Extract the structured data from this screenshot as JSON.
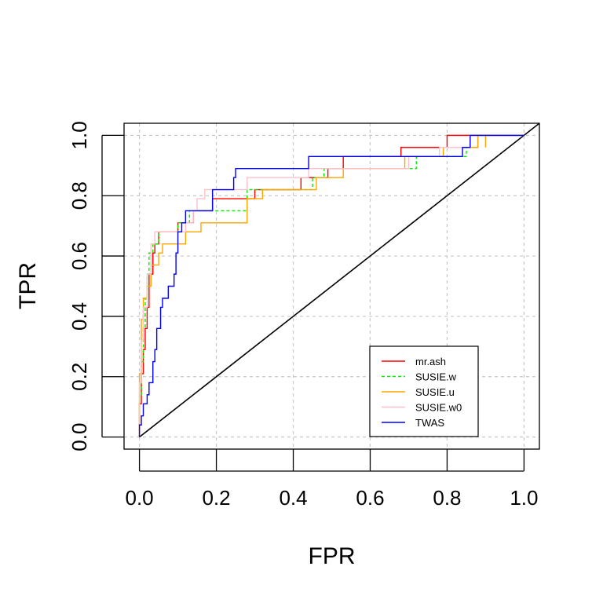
{
  "chart_data": {
    "type": "line",
    "title": "",
    "xlabel": "FPR",
    "ylabel": "TPR",
    "xlim": [
      -0.04,
      1.04
    ],
    "ylim": [
      -0.04,
      1.04
    ],
    "x_ticks": [
      0.0,
      0.2,
      0.4,
      0.6,
      0.8,
      1.0
    ],
    "y_ticks": [
      0.0,
      0.2,
      0.4,
      0.6,
      0.8,
      1.0
    ],
    "x_tick_labels": [
      "0.0",
      "0.2",
      "0.4",
      "0.6",
      "0.8",
      "1.0"
    ],
    "y_tick_labels": [
      "0.0",
      "0.2",
      "0.4",
      "0.6",
      "0.8",
      "1.0"
    ],
    "grid": true,
    "legend_position": "bottom-right",
    "reference_line": {
      "x": [
        0,
        1.04
      ],
      "y": [
        0,
        1.04
      ],
      "color": "#000000"
    },
    "series": [
      {
        "name": "mr.ash",
        "color": "#ff0000",
        "dash": "",
        "points": [
          [
            0,
            0
          ],
          [
            0,
            0.11
          ],
          [
            0.005,
            0.11
          ],
          [
            0.005,
            0.21
          ],
          [
            0.01,
            0.21
          ],
          [
            0.01,
            0.29
          ],
          [
            0.015,
            0.29
          ],
          [
            0.015,
            0.36
          ],
          [
            0.02,
            0.36
          ],
          [
            0.02,
            0.43
          ],
          [
            0.025,
            0.43
          ],
          [
            0.025,
            0.54
          ],
          [
            0.035,
            0.54
          ],
          [
            0.035,
            0.61
          ],
          [
            0.04,
            0.61
          ],
          [
            0.04,
            0.64
          ],
          [
            0.05,
            0.64
          ],
          [
            0.05,
            0.68
          ],
          [
            0.1,
            0.68
          ],
          [
            0.1,
            0.71
          ],
          [
            0.14,
            0.71
          ],
          [
            0.14,
            0.75
          ],
          [
            0.19,
            0.75
          ],
          [
            0.19,
            0.79
          ],
          [
            0.3,
            0.79
          ],
          [
            0.3,
            0.82
          ],
          [
            0.42,
            0.82
          ],
          [
            0.42,
            0.86
          ],
          [
            0.49,
            0.86
          ],
          [
            0.49,
            0.89
          ],
          [
            0.53,
            0.89
          ],
          [
            0.53,
            0.93
          ],
          [
            0.68,
            0.93
          ],
          [
            0.68,
            0.96
          ],
          [
            0.8,
            0.96
          ],
          [
            0.8,
            1.0
          ],
          [
            1.0,
            1.0
          ]
        ]
      },
      {
        "name": "SUSIE.w",
        "color": "#00ee00",
        "dash": "4,3",
        "points": [
          [
            0,
            0
          ],
          [
            0,
            0.14
          ],
          [
            0.005,
            0.14
          ],
          [
            0.005,
            0.25
          ],
          [
            0.01,
            0.25
          ],
          [
            0.01,
            0.36
          ],
          [
            0.015,
            0.36
          ],
          [
            0.015,
            0.46
          ],
          [
            0.02,
            0.46
          ],
          [
            0.02,
            0.54
          ],
          [
            0.025,
            0.54
          ],
          [
            0.025,
            0.61
          ],
          [
            0.035,
            0.61
          ],
          [
            0.035,
            0.64
          ],
          [
            0.05,
            0.64
          ],
          [
            0.05,
            0.68
          ],
          [
            0.1,
            0.68
          ],
          [
            0.1,
            0.71
          ],
          [
            0.13,
            0.71
          ],
          [
            0.13,
            0.75
          ],
          [
            0.28,
            0.75
          ],
          [
            0.28,
            0.82
          ],
          [
            0.45,
            0.82
          ],
          [
            0.45,
            0.86
          ],
          [
            0.48,
            0.86
          ],
          [
            0.48,
            0.89
          ],
          [
            0.72,
            0.89
          ],
          [
            0.72,
            0.93
          ],
          [
            0.85,
            0.93
          ],
          [
            0.85,
            0.96
          ],
          [
            0.88,
            0.96
          ],
          [
            0.88,
            1.0
          ],
          [
            1.0,
            1.0
          ]
        ]
      },
      {
        "name": "SUSIE.u",
        "color": "#ffa500",
        "dash": "",
        "points": [
          [
            0,
            0
          ],
          [
            0,
            0.21
          ],
          [
            0.005,
            0.21
          ],
          [
            0.005,
            0.39
          ],
          [
            0.01,
            0.39
          ],
          [
            0.01,
            0.46
          ],
          [
            0.02,
            0.46
          ],
          [
            0.02,
            0.5
          ],
          [
            0.03,
            0.5
          ],
          [
            0.03,
            0.57
          ],
          [
            0.05,
            0.57
          ],
          [
            0.05,
            0.61
          ],
          [
            0.06,
            0.61
          ],
          [
            0.06,
            0.64
          ],
          [
            0.12,
            0.64
          ],
          [
            0.12,
            0.68
          ],
          [
            0.16,
            0.68
          ],
          [
            0.16,
            0.71
          ],
          [
            0.28,
            0.71
          ],
          [
            0.28,
            0.79
          ],
          [
            0.32,
            0.79
          ],
          [
            0.32,
            0.82
          ],
          [
            0.46,
            0.82
          ],
          [
            0.46,
            0.86
          ],
          [
            0.53,
            0.86
          ],
          [
            0.53,
            0.89
          ],
          [
            0.69,
            0.89
          ],
          [
            0.69,
            0.93
          ],
          [
            0.79,
            0.93
          ],
          [
            0.79,
            0.96
          ],
          [
            0.88,
            0.96
          ],
          [
            0.88,
            1.0
          ],
          [
            0.9,
            1.0
          ],
          [
            0.9,
            0.96
          ],
          [
            0.9,
            1.0
          ],
          [
            1.0,
            1.0
          ]
        ]
      },
      {
        "name": "SUSIE.w0",
        "color": "#ffc0cb",
        "dash": "",
        "points": [
          [
            0,
            0
          ],
          [
            0,
            0.18
          ],
          [
            0.005,
            0.18
          ],
          [
            0.005,
            0.32
          ],
          [
            0.01,
            0.32
          ],
          [
            0.01,
            0.43
          ],
          [
            0.02,
            0.43
          ],
          [
            0.02,
            0.54
          ],
          [
            0.03,
            0.54
          ],
          [
            0.03,
            0.64
          ],
          [
            0.04,
            0.64
          ],
          [
            0.04,
            0.68
          ],
          [
            0.12,
            0.68
          ],
          [
            0.12,
            0.71
          ],
          [
            0.14,
            0.71
          ],
          [
            0.14,
            0.75
          ],
          [
            0.15,
            0.75
          ],
          [
            0.15,
            0.79
          ],
          [
            0.17,
            0.79
          ],
          [
            0.17,
            0.82
          ],
          [
            0.28,
            0.82
          ],
          [
            0.28,
            0.86
          ],
          [
            0.44,
            0.86
          ],
          [
            0.44,
            0.89
          ],
          [
            0.7,
            0.89
          ],
          [
            0.7,
            0.93
          ],
          [
            0.78,
            0.93
          ],
          [
            0.78,
            0.96
          ],
          [
            0.86,
            0.96
          ],
          [
            0.86,
            1.0
          ],
          [
            1.0,
            1.0
          ]
        ]
      },
      {
        "name": "TWAS",
        "color": "#0000ff",
        "dash": "",
        "points": [
          [
            0,
            0
          ],
          [
            0,
            0.04
          ],
          [
            0.005,
            0.04
          ],
          [
            0.005,
            0.07
          ],
          [
            0.01,
            0.07
          ],
          [
            0.01,
            0.11
          ],
          [
            0.02,
            0.11
          ],
          [
            0.02,
            0.14
          ],
          [
            0.025,
            0.14
          ],
          [
            0.025,
            0.18
          ],
          [
            0.035,
            0.18
          ],
          [
            0.035,
            0.25
          ],
          [
            0.04,
            0.25
          ],
          [
            0.04,
            0.29
          ],
          [
            0.045,
            0.29
          ],
          [
            0.045,
            0.36
          ],
          [
            0.055,
            0.36
          ],
          [
            0.055,
            0.43
          ],
          [
            0.06,
            0.43
          ],
          [
            0.06,
            0.46
          ],
          [
            0.075,
            0.46
          ],
          [
            0.075,
            0.5
          ],
          [
            0.09,
            0.5
          ],
          [
            0.09,
            0.54
          ],
          [
            0.095,
            0.54
          ],
          [
            0.095,
            0.61
          ],
          [
            0.1,
            0.61
          ],
          [
            0.1,
            0.68
          ],
          [
            0.11,
            0.68
          ],
          [
            0.11,
            0.71
          ],
          [
            0.12,
            0.71
          ],
          [
            0.12,
            0.75
          ],
          [
            0.19,
            0.75
          ],
          [
            0.19,
            0.82
          ],
          [
            0.245,
            0.82
          ],
          [
            0.245,
            0.86
          ],
          [
            0.25,
            0.86
          ],
          [
            0.25,
            0.89
          ],
          [
            0.44,
            0.89
          ],
          [
            0.44,
            0.93
          ],
          [
            0.84,
            0.93
          ],
          [
            0.84,
            0.96
          ],
          [
            0.86,
            0.96
          ],
          [
            0.86,
            1.0
          ],
          [
            1.0,
            1.0
          ]
        ]
      }
    ]
  }
}
